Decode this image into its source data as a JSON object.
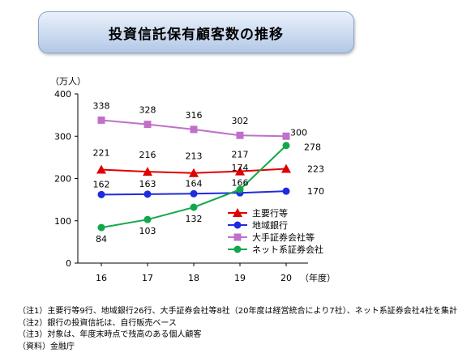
{
  "title": "投資信託保有顧客数の推移",
  "chart_data": {
    "type": "line",
    "ylabel": "（万人）",
    "xlabel": "（年度）",
    "ylim": [
      0,
      400
    ],
    "yticks": [
      "0",
      "100",
      "200",
      "300",
      "400"
    ],
    "categories": [
      "16",
      "17",
      "18",
      "19",
      "20"
    ],
    "grid": false,
    "legend_placement": "right-center",
    "series": [
      {
        "name": "主要行等",
        "values": [
          221,
          216,
          213,
          217,
          223
        ],
        "color": "#e00000",
        "marker": "triangle",
        "labels": [
          "221",
          "216",
          "213",
          "217",
          "223"
        ]
      },
      {
        "name": "地域銀行",
        "values": [
          162,
          163,
          164,
          166,
          170
        ],
        "color": "#1f2be0",
        "marker": "circle",
        "labels": [
          "162",
          "163",
          "164",
          "166",
          "170"
        ]
      },
      {
        "name": "大手証券会社等",
        "values": [
          338,
          328,
          316,
          302,
          300
        ],
        "color": "#c070c8",
        "marker": "square",
        "labels": [
          "338",
          "328",
          "316",
          "302",
          "300"
        ]
      },
      {
        "name": "ネット系証券会社",
        "values": [
          84,
          103,
          132,
          174,
          278
        ],
        "color": "#12a84a",
        "marker": "circle",
        "labels": [
          "84",
          "103",
          "132",
          "174",
          "278"
        ]
      }
    ]
  },
  "notes": [
    "（注1）主要行等9行、地域銀行26行、大手証券会社等8社（20年度は経営統合により7社）、ネット系証券会社4社を集計",
    "（注2）銀行の投資信託は、自行販売ベース",
    "（注3）対象は、年度末時点で残高のある個人顧客",
    "（資料）金融庁"
  ]
}
